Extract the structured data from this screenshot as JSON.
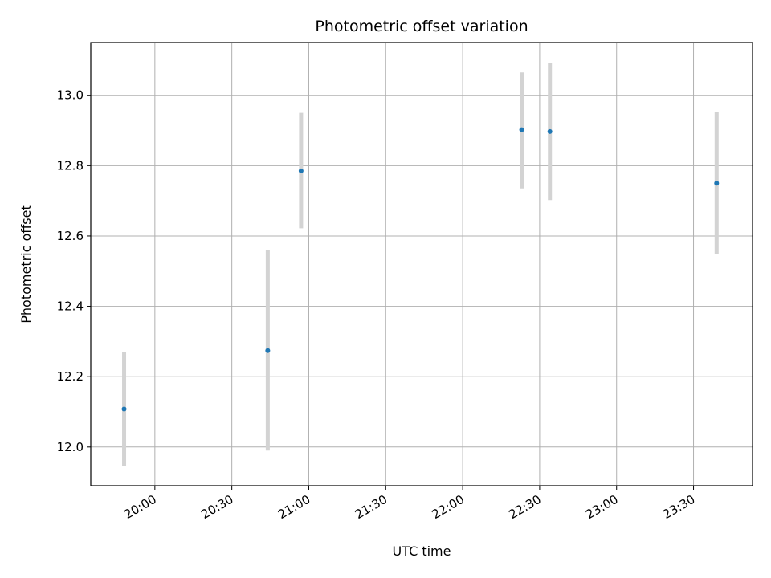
{
  "chart_data": {
    "type": "scatter",
    "title": "Photometric offset variation",
    "xlabel": "UTC time",
    "ylabel": "Photometric offset",
    "x_ticks": [
      "20:00",
      "20:30",
      "21:00",
      "21:30",
      "22:00",
      "22:30",
      "23:00",
      "23:30"
    ],
    "y_ticks": [
      "12.0",
      "12.2",
      "12.4",
      "12.6",
      "12.8",
      "13.0"
    ],
    "xlim": [
      "19:35",
      "23:53"
    ],
    "ylim": [
      11.89,
      13.15
    ],
    "grid": true,
    "point_color": "#1f77b4",
    "errorbar_color": "#d3d3d3",
    "points": [
      {
        "time": "19:48",
        "value": 12.108,
        "error_low": 11.947,
        "error_high": 12.27
      },
      {
        "time": "20:44",
        "value": 12.274,
        "error_low": 11.99,
        "error_high": 12.56
      },
      {
        "time": "20:57",
        "value": 12.785,
        "error_low": 12.622,
        "error_high": 12.95
      },
      {
        "time": "22:23",
        "value": 12.902,
        "error_low": 12.735,
        "error_high": 13.065
      },
      {
        "time": "22:34",
        "value": 12.897,
        "error_low": 12.702,
        "error_high": 13.093
      },
      {
        "time": "23:39",
        "value": 12.75,
        "error_low": 12.548,
        "error_high": 12.953
      }
    ]
  }
}
